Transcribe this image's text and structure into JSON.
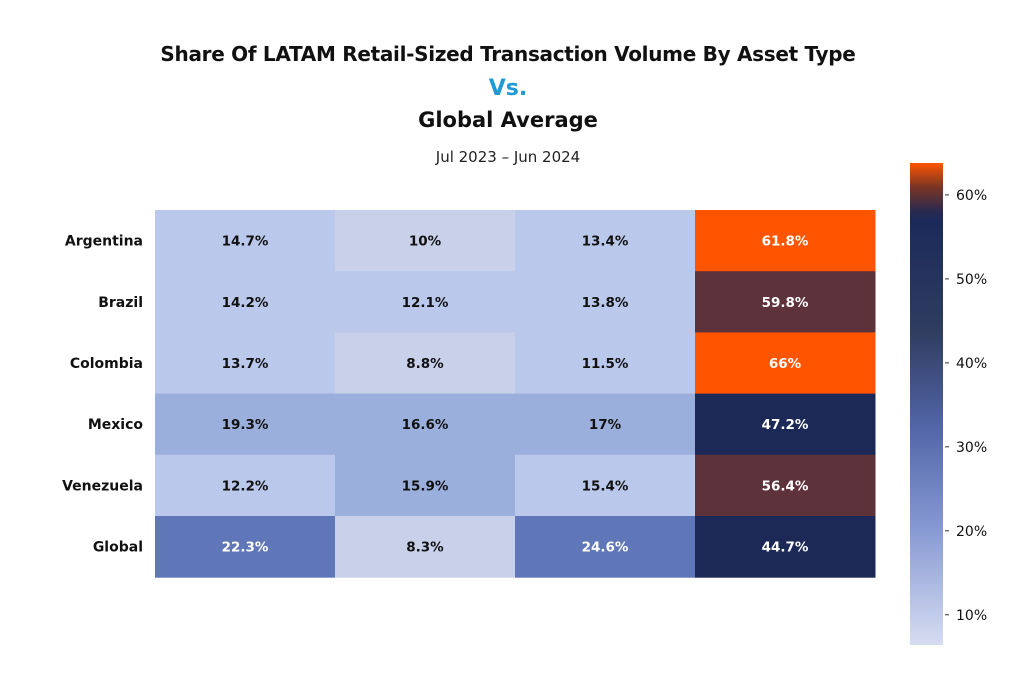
{
  "chart_data": {
    "type": "heatmap",
    "title": "Share Of LATAM Retail-Sized Transaction Volume By Asset Type",
    "title_connector": "Vs.",
    "title_line3": "Global Average",
    "subtitle": "Jul 2023 – Jun 2024",
    "rows": [
      "Argentina",
      "Brazil",
      "Colombia",
      "Mexico",
      "Venezuela",
      "Global"
    ],
    "values": [
      [
        14.7,
        10,
        13.4,
        61.8
      ],
      [
        14.2,
        12.1,
        13.8,
        59.8
      ],
      [
        13.7,
        8.8,
        11.5,
        66
      ],
      [
        19.3,
        16.6,
        17,
        47.2
      ],
      [
        12.2,
        15.9,
        15.4,
        56.4
      ],
      [
        22.3,
        8.3,
        24.6,
        44.7
      ]
    ],
    "value_labels": [
      [
        "14.7%",
        "10%",
        "13.4%",
        "61.8%"
      ],
      [
        "14.2%",
        "12.1%",
        "13.8%",
        "59.8%"
      ],
      [
        "13.7%",
        "8.8%",
        "11.5%",
        "66%"
      ],
      [
        "19.3%",
        "16.6%",
        "17%",
        "47.2%"
      ],
      [
        "12.2%",
        "15.9%",
        "15.4%",
        "56.4%"
      ],
      [
        "22.3%",
        "8.3%",
        "24.6%",
        "44.7%"
      ]
    ],
    "colorbar": {
      "range": [
        6.4,
        63.8
      ],
      "ticks": [
        10,
        20,
        30,
        40,
        50,
        60
      ],
      "tick_labels": [
        "10%",
        "20%",
        "30%",
        "40%",
        "50%",
        "60%"
      ],
      "colors": [
        "#d4dbf0",
        "#7a8fcf",
        "#3a4670",
        "#1b2a5a",
        "#ff5500"
      ]
    },
    "title_accent_color": "#1e9ad6"
  }
}
